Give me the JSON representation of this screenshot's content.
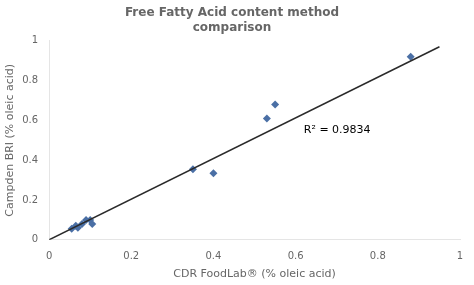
{
  "chart_data": {
    "type": "scatter",
    "title": [
      "Free Fatty Acid content method",
      "comparison"
    ],
    "x_label": "CDR FoodLab® (% oleic acid)",
    "y_label": "Campden BRI (% oleic acid)",
    "series": [
      {
        "type": "line",
        "color": "#2a2a2a",
        "line_style": "solid",
        "x": [
          0.0,
          0.95
        ],
        "values": [
          0.0,
          0.97
        ]
      },
      {
        "type": "scatter",
        "color": "#4a6fa5",
        "marker": "diamond",
        "x": [
          0.055,
          0.065,
          0.07,
          0.08,
          0.09,
          0.1,
          0.105,
          0.35,
          0.4,
          0.53,
          0.55,
          0.88
        ],
        "values": [
          0.055,
          0.07,
          0.06,
          0.08,
          0.1,
          0.1,
          0.08,
          0.355,
          0.335,
          0.61,
          0.68,
          0.92
        ]
      }
    ],
    "annotations": [
      {
        "text": "R² = 0.9834",
        "x": 0.62,
        "y": 0.55
      }
    ],
    "xlim": [
      0.0,
      1.0
    ],
    "ylim": [
      0.0,
      1.0
    ],
    "xticks": [
      0.0,
      0.2,
      0.4,
      0.6,
      0.8,
      1.0
    ],
    "yticks": [
      0.0,
      0.2,
      0.4,
      0.6,
      0.8,
      1.0
    ],
    "grid": false
  }
}
